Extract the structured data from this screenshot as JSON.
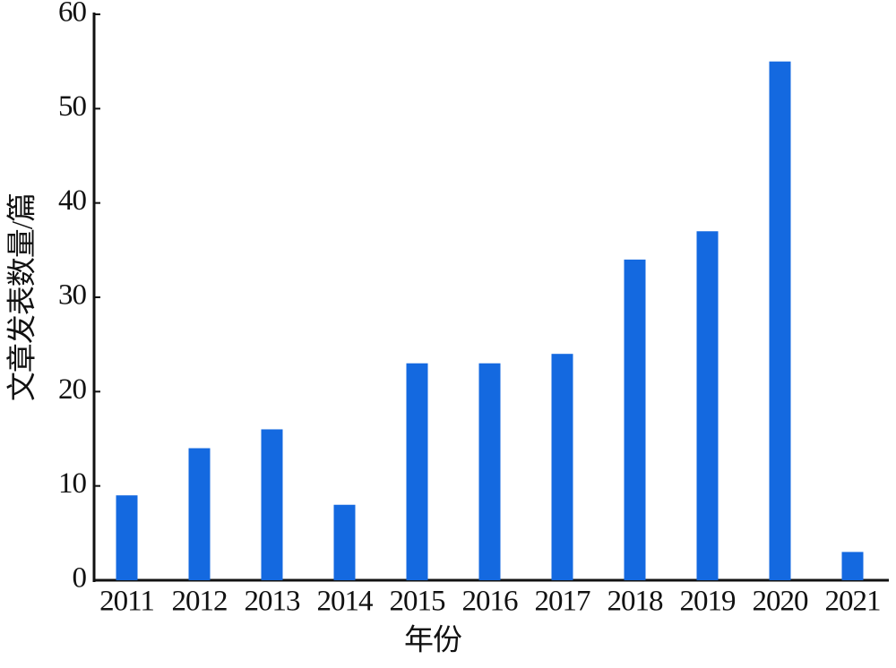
{
  "chart_data": {
    "type": "bar",
    "x_label": "年份",
    "y_label": "文章发表数量/篇",
    "categories": [
      "2011",
      "2012",
      "2013",
      "2014",
      "2015",
      "2016",
      "2017",
      "2018",
      "2019",
      "2020",
      "2021"
    ],
    "values": [
      9,
      14,
      16,
      8,
      23,
      23,
      24,
      34,
      37,
      55,
      3
    ],
    "color": "#1469e0",
    "ylim": [
      0,
      60
    ],
    "yticks": [
      0,
      10,
      20,
      30,
      40,
      50,
      60
    ],
    "grid": false
  }
}
